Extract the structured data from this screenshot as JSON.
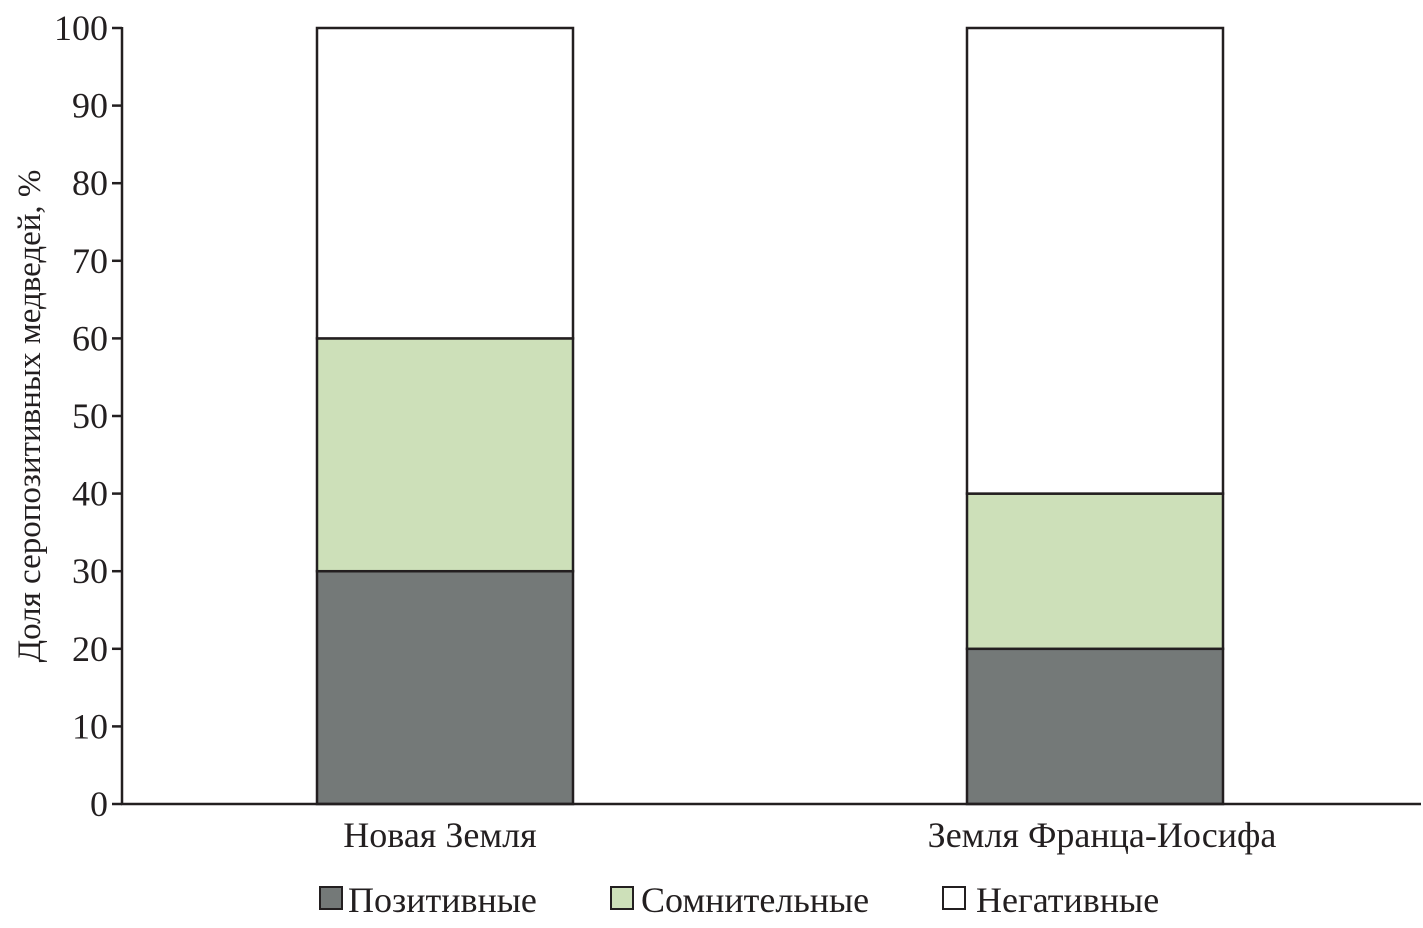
{
  "chart_data": {
    "type": "bar",
    "stacked": true,
    "categories": [
      "Новая Земля",
      "Земля Франца-Иосифа"
    ],
    "series": [
      {
        "name": "Позитивные",
        "values": [
          30,
          20
        ],
        "color": "#747978"
      },
      {
        "name": "Сомнительные",
        "values": [
          30,
          20
        ],
        "color": "#cde0b9"
      },
      {
        "name": "Негативные",
        "values": [
          40,
          60
        ],
        "color": "#ffffff"
      }
    ],
    "xlabel": "",
    "ylabel": "Доля серопозитивных медведей, %",
    "ylim": [
      0,
      100
    ],
    "yticks": [
      "0",
      "10",
      "20",
      "30",
      "40",
      "50",
      "60",
      "70",
      "80",
      "90",
      "100"
    ],
    "grid": false,
    "legend_position": "bottom"
  }
}
